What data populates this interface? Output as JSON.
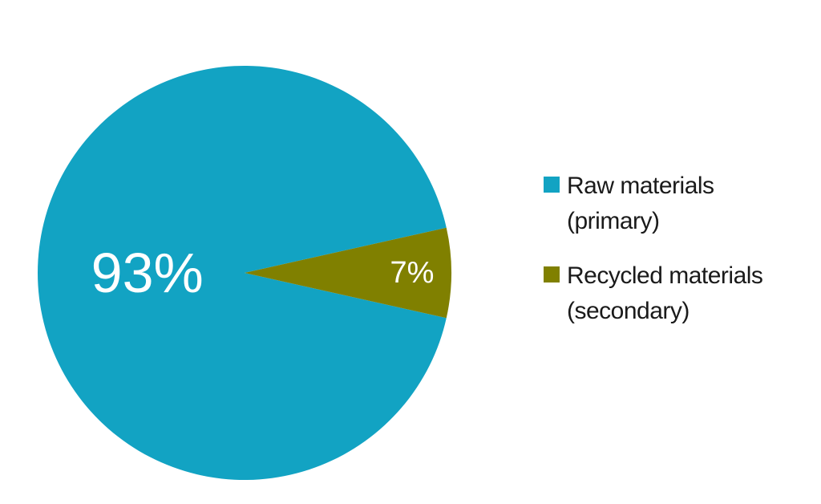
{
  "chart_data": {
    "type": "pie",
    "categories": [
      "Raw materials (primary)",
      "Recycled materials (secondary)"
    ],
    "values": [
      93,
      7
    ],
    "value_labels": [
      "93%",
      "7%"
    ],
    "colors": [
      "#12a3c3",
      "#808000"
    ],
    "legend": "right"
  }
}
